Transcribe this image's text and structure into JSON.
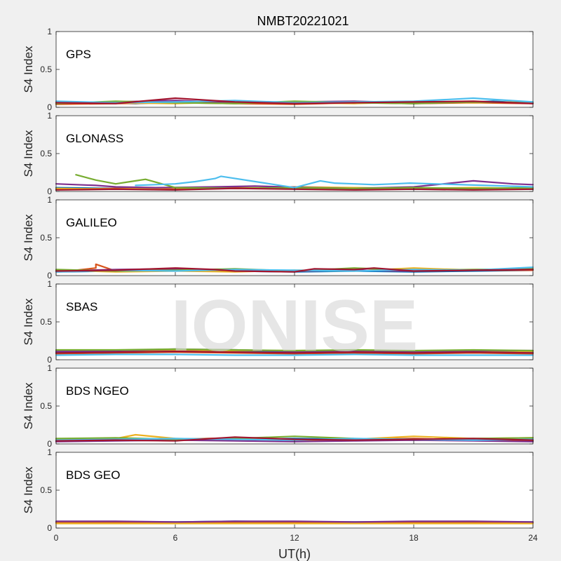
{
  "chart_data": {
    "type": "line",
    "title": "NMBT20221021",
    "xlabel": "UT(h)",
    "ylabel": "S4 Index",
    "xlim": [
      0,
      24
    ],
    "ylim": [
      0,
      1
    ],
    "xticks": [
      0,
      6,
      12,
      18,
      24
    ],
    "yticks": [
      0,
      0.5,
      1
    ],
    "xtick_labels": [
      "0",
      "6",
      "12",
      "18",
      "24"
    ],
    "ytick_labels": [
      "0",
      "0.5",
      "1"
    ],
    "grid": false,
    "watermark": "IONISE",
    "series_colors": [
      "#0072BD",
      "#D95319",
      "#EDB120",
      "#7E2F8E",
      "#77AC30",
      "#4DBEEE",
      "#A2142F"
    ],
    "panels": [
      {
        "label": "GPS",
        "series": [
          {
            "x": [
              0,
              2,
              4,
              6,
              8,
              10,
              12,
              14,
              16,
              18,
              20,
              22,
              24
            ],
            "y": [
              0.05,
              0.06,
              0.05,
              0.07,
              0.06,
              0.05,
              0.06,
              0.07,
              0.06,
              0.05,
              0.06,
              0.08,
              0.05
            ]
          },
          {
            "x": [
              0,
              3,
              6,
              9,
              12,
              15,
              18,
              21,
              24
            ],
            "y": [
              0.04,
              0.05,
              0.06,
              0.05,
              0.04,
              0.06,
              0.05,
              0.06,
              0.05
            ]
          },
          {
            "x": [
              0,
              3,
              6,
              9,
              12,
              15,
              18,
              21,
              24
            ],
            "y": [
              0.07,
              0.06,
              0.05,
              0.07,
              0.06,
              0.05,
              0.07,
              0.06,
              0.07
            ]
          },
          {
            "x": [
              0,
              3,
              6,
              9,
              12,
              15,
              18,
              21,
              24
            ],
            "y": [
              0.06,
              0.07,
              0.09,
              0.06,
              0.07,
              0.08,
              0.06,
              0.07,
              0.06
            ]
          },
          {
            "x": [
              0,
              3,
              6,
              9,
              12,
              15,
              18,
              21,
              24
            ],
            "y": [
              0.05,
              0.08,
              0.06,
              0.05,
              0.08,
              0.06,
              0.05,
              0.07,
              0.06
            ]
          },
          {
            "x": [
              0,
              3,
              6,
              9,
              12,
              15,
              18,
              21,
              24
            ],
            "y": [
              0.08,
              0.06,
              0.07,
              0.09,
              0.06,
              0.07,
              0.08,
              0.12,
              0.07
            ]
          },
          {
            "x": [
              0,
              3,
              6,
              9,
              12,
              15,
              18,
              21,
              24
            ],
            "y": [
              0.06,
              0.05,
              0.12,
              0.07,
              0.05,
              0.06,
              0.07,
              0.08,
              0.05
            ]
          }
        ]
      },
      {
        "label": "GLONASS",
        "series": [
          {
            "x": [
              0,
              3,
              6,
              9,
              12,
              15,
              18,
              21,
              24
            ],
            "y": [
              0.05,
              0.04,
              0.05,
              0.04,
              0.05,
              0.04,
              0.03,
              0.04,
              0.03
            ]
          },
          {
            "x": [
              0,
              3,
              6,
              9,
              12,
              15,
              18,
              21,
              24
            ],
            "y": [
              0.03,
              0.04,
              0.03,
              0.05,
              0.04,
              0.03,
              0.04,
              0.03,
              0.04
            ]
          },
          {
            "x": [
              0,
              3,
              6,
              9,
              12,
              15,
              18,
              21,
              24
            ],
            "y": [
              0.04,
              0.03,
              0.05,
              0.04,
              0.06,
              0.05,
              0.04,
              0.05,
              0.04
            ]
          },
          {
            "x": [
              0,
              1,
              2,
              3,
              5,
              8,
              10,
              13,
              15,
              18,
              21,
              23,
              24
            ],
            "y": [
              0.1,
              0.09,
              0.08,
              0.06,
              0.05,
              0.06,
              0.07,
              0.05,
              0.04,
              0.06,
              0.14,
              0.1,
              0.09
            ]
          },
          {
            "x": [
              1,
              2,
              3,
              3.5,
              4,
              4.5,
              6,
              9,
              12,
              15,
              18,
              21,
              24
            ],
            "y": [
              0.22,
              0.15,
              0.1,
              0.12,
              0.14,
              0.16,
              0.05,
              0.04,
              0.05,
              0.04,
              0.05,
              0.04,
              0.05
            ]
          },
          {
            "x": [
              4,
              5,
              6,
              7,
              8,
              8.3,
              12,
              13.3,
              14,
              15,
              16,
              17,
              17.8,
              24
            ],
            "y": [
              0.08,
              0.09,
              0.1,
              0.13,
              0.17,
              0.2,
              0.05,
              0.14,
              0.11,
              0.1,
              0.09,
              0.1,
              0.11,
              0.06
            ]
          },
          {
            "x": [
              0,
              3,
              6,
              9,
              12,
              15,
              18,
              21,
              24
            ],
            "y": [
              0.02,
              0.03,
              0.02,
              0.04,
              0.03,
              0.02,
              0.03,
              0.02,
              0.03
            ]
          }
        ]
      },
      {
        "label": "GALILEO",
        "series": [
          {
            "x": [
              0,
              3,
              6,
              9,
              12,
              15,
              18,
              21,
              24
            ],
            "y": [
              0.05,
              0.06,
              0.07,
              0.06,
              0.05,
              0.06,
              0.05,
              0.06,
              0.07
            ]
          },
          {
            "x": [
              0,
              1,
              2,
              2,
              3,
              6,
              9,
              12,
              15,
              18,
              21,
              24
            ],
            "y": [
              0.06,
              0.07,
              0.1,
              0.15,
              0.06,
              0.09,
              0.07,
              0.06,
              0.07,
              0.06,
              0.07,
              0.07
            ]
          },
          {
            "x": [
              0,
              3,
              6,
              9,
              12,
              15,
              18,
              21,
              24
            ],
            "y": [
              0.07,
              0.05,
              0.06,
              0.05,
              0.07,
              0.06,
              0.1,
              0.07,
              0.09
            ]
          },
          {
            "x": [
              0,
              3,
              6,
              9,
              12,
              15,
              18,
              21,
              24
            ],
            "y": [
              0.06,
              0.08,
              0.09,
              0.07,
              0.06,
              0.07,
              0.06,
              0.07,
              0.08
            ]
          },
          {
            "x": [
              0,
              3,
              6,
              9,
              12,
              15,
              18,
              21,
              24
            ],
            "y": [
              0.08,
              0.06,
              0.07,
              0.09,
              0.06,
              0.1,
              0.07,
              0.08,
              0.09
            ]
          },
          {
            "x": [
              0,
              3,
              6,
              9,
              12,
              15,
              18,
              21,
              24
            ],
            "y": [
              0.05,
              0.07,
              0.06,
              0.08,
              0.07,
              0.06,
              0.08,
              0.07,
              0.11
            ]
          },
          {
            "x": [
              0,
              3,
              6,
              8,
              9,
              12,
              13,
              15,
              16,
              18,
              21,
              24
            ],
            "y": [
              0.06,
              0.07,
              0.1,
              0.08,
              0.06,
              0.05,
              0.09,
              0.08,
              0.1,
              0.06,
              0.07,
              0.08
            ]
          }
        ]
      },
      {
        "label": "SBAS",
        "series": [
          {
            "x": [
              0,
              3,
              6,
              9,
              12,
              15,
              18,
              21,
              24
            ],
            "y": [
              0.1,
              0.11,
              0.12,
              0.11,
              0.1,
              0.11,
              0.1,
              0.11,
              0.1
            ]
          },
          {
            "x": [
              0,
              3,
              6,
              9,
              12,
              15,
              18,
              21,
              24
            ],
            "y": [
              0.08,
              0.09,
              0.1,
              0.09,
              0.08,
              0.09,
              0.08,
              0.09,
              0.08
            ]
          },
          {
            "x": [
              0,
              3,
              6,
              9,
              12,
              15,
              18,
              21,
              24
            ],
            "y": [
              0.12,
              0.12,
              0.13,
              0.12,
              0.12,
              0.12,
              0.11,
              0.12,
              0.11
            ]
          },
          {
            "x": [
              0,
              3,
              6,
              9,
              12,
              15,
              18,
              21,
              24
            ],
            "y": [
              0.11,
              0.12,
              0.14,
              0.13,
              0.11,
              0.12,
              0.11,
              0.12,
              0.12
            ]
          },
          {
            "x": [
              0,
              3,
              6,
              9,
              12,
              15,
              18,
              21,
              24
            ],
            "y": [
              0.13,
              0.13,
              0.14,
              0.13,
              0.12,
              0.13,
              0.12,
              0.13,
              0.12
            ]
          },
          {
            "x": [
              0,
              3,
              6,
              9,
              12,
              15,
              18,
              21,
              24
            ],
            "y": [
              0.06,
              0.07,
              0.07,
              0.06,
              0.06,
              0.07,
              0.06,
              0.06,
              0.06
            ]
          },
          {
            "x": [
              0,
              3,
              6,
              9,
              12,
              15,
              18,
              21,
              24
            ],
            "y": [
              0.09,
              0.1,
              0.11,
              0.1,
              0.09,
              0.1,
              0.09,
              0.1,
              0.09
            ]
          }
        ]
      },
      {
        "label": "BDS NGEO",
        "series": [
          {
            "x": [
              0,
              3,
              6,
              9,
              12,
              15,
              18,
              21,
              24
            ],
            "y": [
              0.05,
              0.06,
              0.05,
              0.06,
              0.07,
              0.06,
              0.05,
              0.06,
              0.05
            ]
          },
          {
            "x": [
              0,
              3,
              6,
              9,
              12,
              15,
              18,
              21,
              24
            ],
            "y": [
              0.04,
              0.05,
              0.06,
              0.08,
              0.05,
              0.06,
              0.07,
              0.05,
              0.04
            ]
          },
          {
            "x": [
              0,
              3,
              4,
              6,
              9,
              12,
              15,
              18,
              21,
              24
            ],
            "y": [
              0.06,
              0.07,
              0.12,
              0.07,
              0.06,
              0.05,
              0.06,
              0.1,
              0.07,
              0.08
            ]
          },
          {
            "x": [
              0,
              3,
              6,
              9,
              12,
              15,
              18,
              21,
              24
            ],
            "y": [
              0.03,
              0.04,
              0.05,
              0.04,
              0.03,
              0.04,
              0.05,
              0.04,
              0.03
            ]
          },
          {
            "x": [
              0,
              3,
              6,
              9,
              12,
              15,
              18,
              21,
              24
            ],
            "y": [
              0.07,
              0.08,
              0.06,
              0.07,
              0.1,
              0.07,
              0.06,
              0.07,
              0.08
            ]
          },
          {
            "x": [
              0,
              3,
              6,
              9,
              12,
              15,
              18,
              21,
              24
            ],
            "y": [
              0.05,
              0.06,
              0.07,
              0.06,
              0.05,
              0.07,
              0.06,
              0.05,
              0.06
            ]
          },
          {
            "x": [
              0,
              3,
              6,
              9,
              12,
              15,
              18,
              21,
              24
            ],
            "y": [
              0.04,
              0.05,
              0.04,
              0.09,
              0.06,
              0.05,
              0.06,
              0.07,
              0.05
            ]
          }
        ]
      },
      {
        "label": "BDS GEO",
        "series": [
          {
            "x": [
              0,
              3,
              6,
              9,
              12,
              15,
              18,
              21,
              24
            ],
            "y": [
              0.08,
              0.08,
              0.08,
              0.09,
              0.08,
              0.08,
              0.08,
              0.08,
              0.08
            ]
          },
          {
            "x": [
              0,
              3,
              6,
              9,
              12,
              15,
              18,
              21,
              24
            ],
            "y": [
              0.07,
              0.07,
              0.07,
              0.07,
              0.07,
              0.07,
              0.07,
              0.07,
              0.07
            ]
          },
          {
            "x": [
              0,
              3,
              6,
              9,
              12,
              15,
              18,
              21,
              24
            ],
            "y": [
              0.06,
              0.06,
              0.06,
              0.06,
              0.06,
              0.06,
              0.06,
              0.06,
              0.06
            ]
          },
          {
            "x": [
              0,
              3,
              6,
              9,
              12,
              15,
              18,
              21,
              24
            ],
            "y": [
              0.09,
              0.09,
              0.08,
              0.09,
              0.09,
              0.08,
              0.09,
              0.09,
              0.08
            ]
          }
        ]
      }
    ]
  }
}
